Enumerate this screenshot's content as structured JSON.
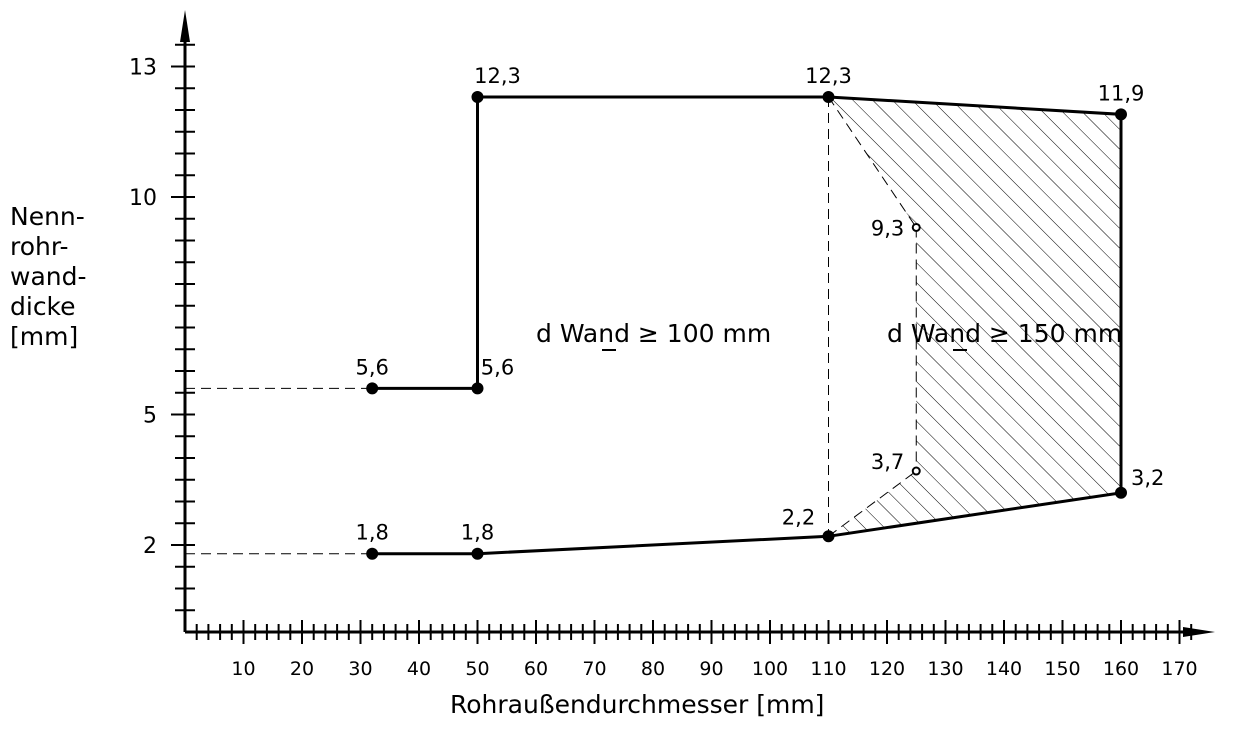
{
  "chart_data": {
    "type": "line",
    "xlabel": "Rohraußendurchmesser [mm]",
    "ylabel_lines": [
      "Nenn-",
      "rohr-",
      "wand-",
      "dicke",
      "[mm]"
    ],
    "x_ticks": [
      "10",
      "20",
      "30",
      "40",
      "50",
      "60",
      "70",
      "80",
      "90",
      "100",
      "110",
      "120",
      "130",
      "140",
      "150",
      "160",
      "170"
    ],
    "y_ticks": [
      "2",
      "5",
      "10",
      "13"
    ],
    "xlim": [
      0,
      175
    ],
    "ylim": [
      0,
      14
    ],
    "y_scale": "linear",
    "grid": false,
    "series": [
      {
        "values": [
          [
            32,
            5.6
          ],
          [
            50,
            5.6
          ],
          [
            50,
            12.3
          ],
          [
            110,
            12.3
          ],
          [
            160,
            11.9
          ],
          [
            160,
            3.2
          ],
          [
            110,
            2.2
          ],
          [
            50,
            1.8
          ],
          [
            32,
            1.8
          ]
        ]
      }
    ],
    "points": [
      {
        "x": 32,
        "y": 5.6,
        "label": "5,6"
      },
      {
        "x": 50,
        "y": 5.6,
        "label": "5,6"
      },
      {
        "x": 50,
        "y": 12.3,
        "label": "12,3"
      },
      {
        "x": 110,
        "y": 12.3,
        "label": "12,3"
      },
      {
        "x": 160,
        "y": 11.9,
        "label": "11,9"
      },
      {
        "x": 160,
        "y": 3.2,
        "label": "3,2"
      },
      {
        "x": 110,
        "y": 2.2,
        "label": "2,2"
      },
      {
        "x": 50,
        "y": 1.8,
        "label": "1,8"
      },
      {
        "x": 32,
        "y": 1.8,
        "label": "1,8"
      },
      {
        "x": 125,
        "y": 9.3,
        "label": "9,3"
      },
      {
        "x": 125,
        "y": 3.7,
        "label": "3,7"
      }
    ],
    "annotations": [
      "d Wand ≥ 100 mm",
      "d Wand ≥ 150 mm"
    ]
  }
}
